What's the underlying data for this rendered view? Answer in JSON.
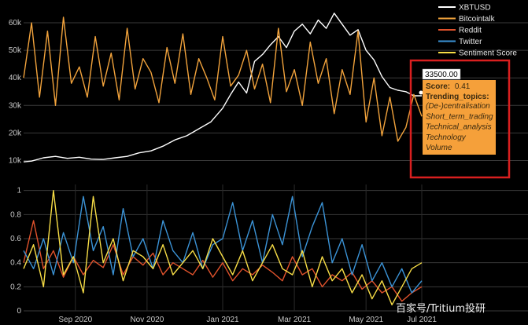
{
  "chart_data": [
    {
      "type": "line",
      "title": "",
      "y_tick_labels": [
        "10k",
        "20k",
        "30k",
        "40k",
        "50k",
        "60k"
      ],
      "y_ticks": [
        10000,
        20000,
        30000,
        40000,
        50000,
        60000
      ],
      "ylim": [
        7000,
        66000
      ],
      "grid": true,
      "legend": {
        "placement": "top-right"
      },
      "series": [
        {
          "name": "XBTUSD",
          "color": "#ffffff",
          "x": [
            0,
            0.02,
            0.05,
            0.08,
            0.11,
            0.14,
            0.17,
            0.2,
            0.23,
            0.26,
            0.29,
            0.32,
            0.35,
            0.38,
            0.41,
            0.44,
            0.47,
            0.5,
            0.52,
            0.54,
            0.56,
            0.58,
            0.6,
            0.62,
            0.64,
            0.66,
            0.68,
            0.7,
            0.72,
            0.74,
            0.76,
            0.78,
            0.8,
            0.82,
            0.84,
            0.86,
            0.88,
            0.9,
            0.92,
            0.94,
            0.96,
            0.98,
            1.0
          ],
          "values": [
            9500,
            9800,
            11000,
            11500,
            10800,
            11200,
            10500,
            10400,
            11000,
            11500,
            12800,
            13500,
            15200,
            17500,
            19000,
            21500,
            24000,
            29000,
            34000,
            38500,
            34500,
            46000,
            48500,
            52000,
            55000,
            51000,
            57000,
            59500,
            56000,
            61000,
            58000,
            63500,
            59500,
            55500,
            57500,
            50000,
            46500,
            40500,
            36500,
            35500,
            35000,
            33500,
            33500
          ]
        },
        {
          "name": "Bitcointalk",
          "color": "#f2a33c",
          "x": [
            0,
            0.02,
            0.04,
            0.06,
            0.08,
            0.1,
            0.12,
            0.14,
            0.16,
            0.18,
            0.2,
            0.22,
            0.24,
            0.26,
            0.28,
            0.3,
            0.32,
            0.34,
            0.36,
            0.38,
            0.4,
            0.42,
            0.44,
            0.46,
            0.48,
            0.5,
            0.52,
            0.54,
            0.56,
            0.58,
            0.6,
            0.62,
            0.64,
            0.66,
            0.68,
            0.7,
            0.72,
            0.74,
            0.76,
            0.78,
            0.8,
            0.82,
            0.84,
            0.86,
            0.88,
            0.9,
            0.92,
            0.94,
            0.96,
            0.98,
            1.0
          ],
          "values": [
            40000,
            60000,
            33000,
            57000,
            30000,
            62000,
            38000,
            44000,
            33000,
            55000,
            37000,
            49000,
            32000,
            58000,
            36000,
            47000,
            42000,
            31000,
            51000,
            38000,
            56000,
            34000,
            47000,
            40000,
            32000,
            55000,
            37000,
            41000,
            50000,
            36000,
            45000,
            31000,
            58000,
            35000,
            43000,
            30000,
            53000,
            38000,
            47000,
            27000,
            43000,
            34000,
            57000,
            24000,
            40000,
            19000,
            33000,
            17000,
            22000,
            34000,
            26000
          ]
        },
        {
          "name": "Reddit",
          "color": "#e0522c",
          "x": [],
          "values": []
        },
        {
          "name": "Twitter",
          "color": "#3b93d6",
          "x": [],
          "values": []
        },
        {
          "name": "Sentiment Score",
          "color": "#f7dd46",
          "x": [],
          "values": []
        }
      ],
      "tooltip": {
        "value_label": "33500.00",
        "score_label": "Score:",
        "score_value": "0.41",
        "topics_label": "Trending_topics:",
        "topics": [
          "(De-)centralisation",
          "Short_term_trading",
          "Technical_analysis",
          "Technology",
          "Volume"
        ]
      }
    },
    {
      "type": "line",
      "title": "",
      "y_tick_labels": [
        "0",
        "0.2",
        "0.4",
        "0.6",
        "0.8",
        "1"
      ],
      "y_ticks": [
        0,
        0.2,
        0.4,
        0.6,
        0.8,
        1
      ],
      "ylim": [
        0,
        1.05
      ],
      "grid": true,
      "x_tick_labels": [
        "Sep 2020",
        "Nov 2020",
        "Jan 2021",
        "Mar 2021",
        "May 2021",
        "Jul 2021"
      ],
      "x_ticks": [
        0.13,
        0.31,
        0.5,
        0.68,
        0.86,
        1.0
      ],
      "series": [
        {
          "name": "Reddit",
          "color": "#e0522c",
          "x": [
            0,
            0.025,
            0.05,
            0.075,
            0.1,
            0.125,
            0.15,
            0.175,
            0.2,
            0.225,
            0.25,
            0.275,
            0.3,
            0.325,
            0.35,
            0.375,
            0.4,
            0.425,
            0.45,
            0.475,
            0.5,
            0.525,
            0.55,
            0.575,
            0.6,
            0.625,
            0.65,
            0.675,
            0.7,
            0.725,
            0.75,
            0.775,
            0.8,
            0.825,
            0.85,
            0.875,
            0.9,
            0.925,
            0.95,
            0.975,
            1.0
          ],
          "values": [
            0.4,
            0.75,
            0.35,
            0.5,
            0.28,
            0.45,
            0.3,
            0.42,
            0.36,
            0.55,
            0.3,
            0.45,
            0.38,
            0.48,
            0.3,
            0.4,
            0.35,
            0.3,
            0.42,
            0.28,
            0.4,
            0.25,
            0.35,
            0.3,
            0.38,
            0.32,
            0.25,
            0.45,
            0.3,
            0.35,
            0.2,
            0.3,
            0.25,
            0.32,
            0.18,
            0.25,
            0.15,
            0.2,
            0.08,
            0.15,
            0.2
          ]
        },
        {
          "name": "Twitter",
          "color": "#3b93d6",
          "x": [
            0,
            0.025,
            0.05,
            0.075,
            0.1,
            0.125,
            0.15,
            0.175,
            0.2,
            0.225,
            0.25,
            0.275,
            0.3,
            0.325,
            0.35,
            0.375,
            0.4,
            0.425,
            0.45,
            0.475,
            0.5,
            0.525,
            0.55,
            0.575,
            0.6,
            0.625,
            0.65,
            0.675,
            0.7,
            0.725,
            0.75,
            0.775,
            0.8,
            0.825,
            0.85,
            0.875,
            0.9,
            0.925,
            0.95,
            0.975,
            1.0
          ],
          "values": [
            0.5,
            0.35,
            0.6,
            0.3,
            0.65,
            0.4,
            0.95,
            0.5,
            0.7,
            0.3,
            0.85,
            0.45,
            0.6,
            0.35,
            0.75,
            0.5,
            0.4,
            0.65,
            0.35,
            0.55,
            0.6,
            0.9,
            0.5,
            0.75,
            0.4,
            0.8,
            0.55,
            0.95,
            0.45,
            0.7,
            0.9,
            0.4,
            0.6,
            0.3,
            0.55,
            0.25,
            0.4,
            0.2,
            0.35,
            0.15,
            0.25
          ]
        },
        {
          "name": "Sentiment Score",
          "color": "#f7dd46",
          "x": [
            0,
            0.025,
            0.05,
            0.075,
            0.1,
            0.125,
            0.15,
            0.175,
            0.2,
            0.225,
            0.25,
            0.275,
            0.3,
            0.325,
            0.35,
            0.375,
            0.4,
            0.425,
            0.45,
            0.475,
            0.5,
            0.525,
            0.55,
            0.575,
            0.6,
            0.625,
            0.65,
            0.675,
            0.7,
            0.725,
            0.75,
            0.775,
            0.8,
            0.825,
            0.85,
            0.875,
            0.9,
            0.925,
            0.95,
            0.975,
            1.0
          ],
          "values": [
            0.35,
            0.55,
            0.2,
            1.0,
            0.3,
            0.45,
            0.15,
            0.95,
            0.4,
            0.6,
            0.25,
            0.5,
            0.45,
            0.35,
            0.55,
            0.3,
            0.4,
            0.5,
            0.35,
            0.6,
            0.45,
            0.3,
            0.5,
            0.25,
            0.4,
            0.55,
            0.35,
            0.3,
            0.5,
            0.2,
            0.45,
            0.25,
            0.35,
            0.15,
            0.3,
            0.1,
            0.25,
            0.05,
            0.2,
            0.35,
            0.4
          ]
        }
      ]
    }
  ],
  "watermark": "百家号/Tritium投研",
  "highlight_color": "#d91f1f",
  "tooltip_bg": "#f5a03a"
}
